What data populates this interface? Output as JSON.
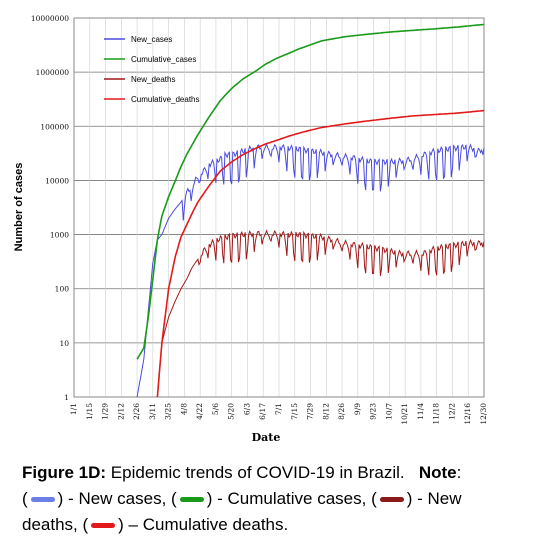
{
  "chart_data": {
    "type": "line",
    "xlabel": "Date",
    "ylabel": "Number of cases",
    "yscale": "log",
    "ylim": [
      1,
      10000000
    ],
    "yticks": [
      "1",
      "10",
      "100",
      "1000",
      "10000",
      "100000",
      "1000000",
      "10000000"
    ],
    "xticks": [
      "1/1",
      "1/15",
      "1/29",
      "2/12",
      "2/26",
      "3/11",
      "3/25",
      "4/8",
      "4/22",
      "5/6",
      "5/20",
      "6/3",
      "6/17",
      "7/1",
      "7/15",
      "7/29",
      "8/12",
      "8/26",
      "9/9",
      "9/23",
      "10/7",
      "10/21",
      "11/4",
      "11/18",
      "12/2",
      "12/16",
      "12/30"
    ],
    "grid": true,
    "legend_position": "top-left",
    "series": [
      {
        "name": "New_cases",
        "color": "#4a4ae0",
        "x": [
          56,
          62,
          66,
          70,
          74,
          78,
          84,
          90,
          95,
          100,
          105,
          110,
          115,
          120,
          125,
          130,
          135,
          140,
          145,
          150,
          155,
          160,
          165,
          170,
          175,
          180,
          190,
          200,
          210,
          220,
          230,
          240,
          250,
          260,
          270,
          280,
          290,
          300,
          310,
          320,
          330,
          340,
          350,
          360,
          364
        ],
        "y": [
          1,
          5,
          40,
          300,
          800,
          1000,
          2000,
          3000,
          4000,
          6000,
          8000,
          12000,
          15000,
          20000,
          22000,
          25000,
          30000,
          30000,
          32000,
          35000,
          38000,
          40000,
          42000,
          42000,
          40000,
          42000,
          40000,
          38000,
          35000,
          33000,
          30000,
          28000,
          26000,
          23000,
          22000,
          22000,
          23000,
          25000,
          30000,
          35000,
          38000,
          40000,
          42000,
          35000,
          40000
        ]
      },
      {
        "name": "Cumulative_cases",
        "color": "#1a9a1a",
        "x": [
          56,
          62,
          66,
          70,
          74,
          78,
          84,
          90,
          95,
          100,
          110,
          120,
          130,
          140,
          150,
          160,
          170,
          180,
          190,
          200,
          210,
          220,
          240,
          260,
          280,
          300,
          320,
          340,
          364
        ],
        "y": [
          5,
          8,
          30,
          150,
          800,
          2200,
          5000,
          10000,
          18000,
          30000,
          70000,
          150000,
          300000,
          500000,
          750000,
          1000000,
          1400000,
          1800000,
          2200000,
          2700000,
          3200000,
          3800000,
          4500000,
          5000000,
          5500000,
          5900000,
          6300000,
          6800000,
          7600000
        ]
      },
      {
        "name": "New_deaths",
        "color": "#a01818",
        "x": [
          74,
          78,
          84,
          90,
          95,
          100,
          105,
          110,
          115,
          120,
          125,
          130,
          135,
          140,
          150,
          160,
          170,
          180,
          190,
          200,
          210,
          220,
          230,
          240,
          250,
          260,
          270,
          280,
          290,
          300,
          310,
          320,
          330,
          340,
          350,
          360,
          364
        ],
        "y": [
          1,
          10,
          30,
          60,
          100,
          150,
          250,
          350,
          500,
          650,
          750,
          850,
          900,
          950,
          1000,
          1050,
          1050,
          1050,
          1000,
          1000,
          950,
          900,
          800,
          700,
          650,
          600,
          550,
          500,
          450,
          450,
          450,
          550,
          600,
          650,
          700,
          700,
          750
        ]
      },
      {
        "name": "Cumulative_deaths",
        "color": "#e41a1a",
        "x": [
          74,
          78,
          84,
          90,
          95,
          100,
          105,
          110,
          120,
          130,
          140,
          150,
          160,
          170,
          180,
          190,
          200,
          210,
          220,
          240,
          260,
          280,
          300,
          320,
          340,
          364
        ],
        "y": [
          1,
          10,
          100,
          400,
          900,
          1500,
          2500,
          4000,
          8000,
          15000,
          22000,
          30000,
          38000,
          47000,
          55000,
          65000,
          75000,
          85000,
          95000,
          110000,
          125000,
          140000,
          155000,
          165000,
          175000,
          195000
        ]
      }
    ]
  },
  "caption": {
    "figure_label": "Figure 1D:",
    "text": "Epidemic trends  of  COVID-19  in Brazil.",
    "note_label": "Note",
    "note_colon": ":",
    "p1": ") - New cases, (",
    "p2": ") - Cumulative  cases, (",
    "p3": ") - New",
    "p4": "deaths, (",
    "p5": ") – Cumulative deaths.",
    "open_paren": "("
  }
}
